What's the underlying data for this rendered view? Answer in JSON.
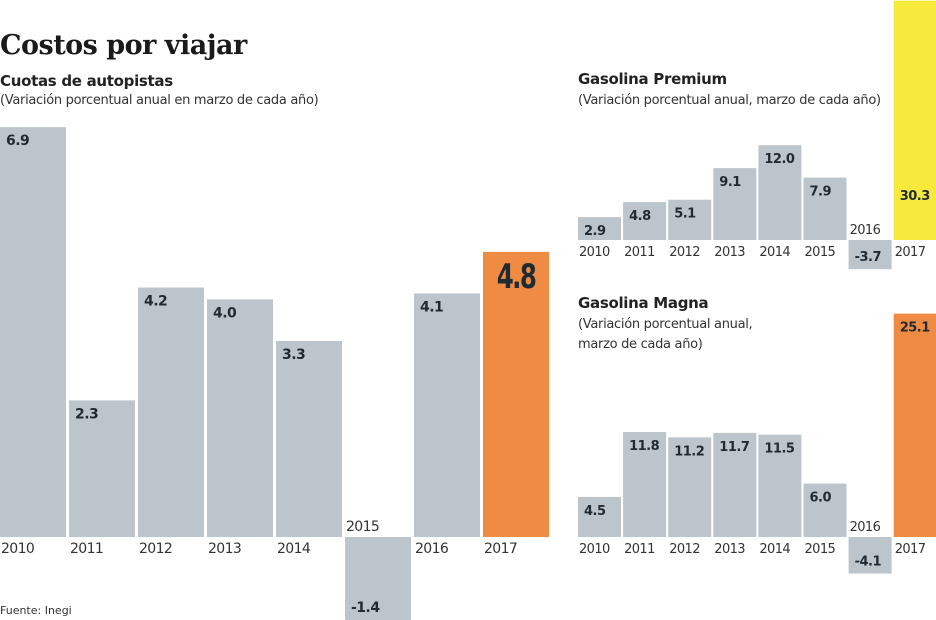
{
  "title": "Costos por viajar",
  "source": "Fuente: Inegi",
  "chart_data": [
    {
      "type": "bar",
      "title": "Cuotas de autopistas",
      "subtitle": "(Variación porcentual anual en marzo de cada año)",
      "categories": [
        "2010",
        "2011",
        "2012",
        "2013",
        "2014",
        "2015",
        "2016",
        "2017"
      ],
      "values": [
        6.9,
        2.3,
        4.2,
        4.0,
        3.3,
        -1.4,
        4.1,
        4.8
      ],
      "labels": [
        "6.9",
        "2.3",
        "4.2",
        "4.0",
        "3.3",
        "-1.4",
        "4.1",
        "4.8"
      ],
      "bar_color": "#bcc5cb",
      "highlight": {
        "category": "2017",
        "color": "#f08b43"
      }
    },
    {
      "type": "bar",
      "title": "Gasolina Premium",
      "subtitle": "(Variación porcentual anual, marzo de cada año)",
      "categories": [
        "2010",
        "2011",
        "2012",
        "2013",
        "2014",
        "2015",
        "2016",
        "2017"
      ],
      "values": [
        2.9,
        4.8,
        5.1,
        9.1,
        12.0,
        7.9,
        -3.7,
        30.3
      ],
      "labels": [
        "2.9",
        "4.8",
        "5.1",
        "9.1",
        "12.0",
        "7.9",
        "-3.7",
        "30.3"
      ],
      "bar_color": "#bcc5cb",
      "highlight": {
        "category": "2017",
        "color": "#f8ea3c"
      }
    },
    {
      "type": "bar",
      "title": "Gasolina Magna",
      "subtitle": "(Variación porcentual anual,",
      "subtitle2": "marzo de cada año)",
      "categories": [
        "2010",
        "2011",
        "2012",
        "2013",
        "2014",
        "2015",
        "2016",
        "2017"
      ],
      "values": [
        4.5,
        11.8,
        11.2,
        11.7,
        11.5,
        6.0,
        -4.1,
        25.1
      ],
      "labels": [
        "4.5",
        "11.8",
        "11.2",
        "11.7",
        "11.5",
        "6.0",
        "-4.1",
        "25.1"
      ],
      "bar_color": "#bcc5cb",
      "highlight": {
        "category": "2017",
        "color": "#f08b43"
      }
    }
  ]
}
